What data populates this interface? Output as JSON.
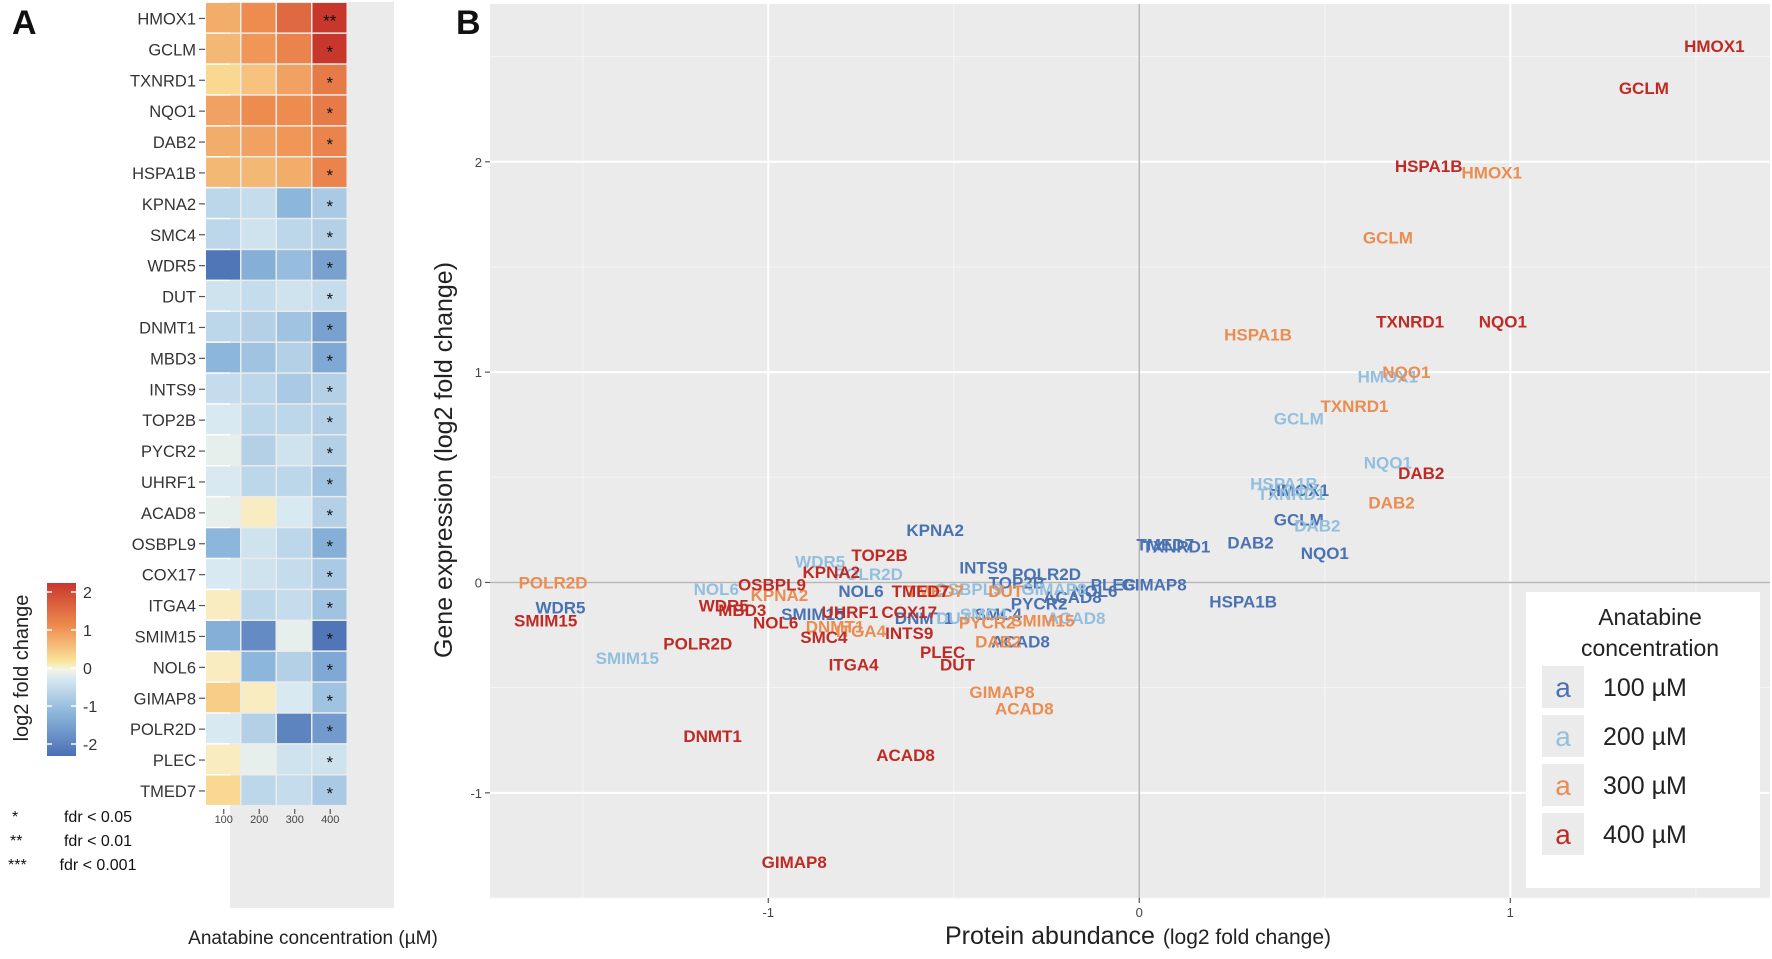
{
  "panel_a_letter": "A",
  "panel_b_letter": "B",
  "chart_data": [
    {
      "type": "heatmap",
      "panel": "A",
      "xlabel": "Anatabine concentration (µM)",
      "x_ticks": [
        "100",
        "200",
        "300",
        "400"
      ],
      "genes": [
        "HMOX1",
        "GCLM",
        "TXNRD1",
        "NQO1",
        "DAB2",
        "HSPA1B",
        "KPNA2",
        "SMC4",
        "WDR5",
        "DUT",
        "DNMT1",
        "MBD3",
        "INTS9",
        "TOP2B",
        "PYCR2",
        "UHRF1",
        "ACAD8",
        "OSBPL9",
        "COX17",
        "ITGA4",
        "SMIM15",
        "NOL6",
        "GIMAP8",
        "POLR2D",
        "PLEC",
        "TMED7"
      ],
      "values": [
        [
          0.7,
          1.0,
          1.4,
          2.3
        ],
        [
          0.6,
          0.9,
          1.1,
          2.0
        ],
        [
          0.3,
          0.5,
          0.8,
          1.2
        ],
        [
          0.8,
          1.0,
          1.0,
          1.2
        ],
        [
          0.7,
          0.8,
          0.9,
          1.1
        ],
        [
          0.6,
          0.6,
          0.7,
          1.1
        ],
        [
          -0.5,
          -0.4,
          -1.0,
          -0.7
        ],
        [
          -0.5,
          -0.3,
          -0.5,
          -0.6
        ],
        [
          -1.9,
          -1.1,
          -0.9,
          -1.3
        ],
        [
          -0.3,
          -0.4,
          -0.3,
          -0.4
        ],
        [
          -0.5,
          -0.6,
          -0.8,
          -1.3
        ],
        [
          -1.0,
          -0.8,
          -0.6,
          -1.2
        ],
        [
          -0.4,
          -0.5,
          -0.7,
          -0.6
        ],
        [
          -0.2,
          -0.5,
          -0.5,
          -0.6
        ],
        [
          -0.1,
          -0.6,
          -0.3,
          -0.6
        ],
        [
          -0.2,
          -0.5,
          -0.5,
          -0.8
        ],
        [
          -0.1,
          0.1,
          -0.2,
          -0.6
        ],
        [
          -1.0,
          -0.3,
          -0.5,
          -1.1
        ],
        [
          -0.2,
          -0.3,
          -0.4,
          -0.7
        ],
        [
          0.1,
          -0.5,
          -0.4,
          -0.8
        ],
        [
          -1.1,
          -1.6,
          -0.1,
          -1.9
        ],
        [
          0.1,
          -1.0,
          -0.6,
          -1.2
        ],
        [
          0.4,
          0.1,
          -0.2,
          -0.8
        ],
        [
          -0.2,
          -0.6,
          -1.7,
          -1.4
        ],
        [
          0.1,
          -0.1,
          -0.3,
          -0.3
        ],
        [
          0.3,
          -0.5,
          -0.4,
          -0.7
        ]
      ],
      "significance": [
        "**",
        "*",
        "*",
        "*",
        "*",
        "*",
        "*",
        "*",
        "*",
        "*",
        "*",
        "*",
        "*",
        "*",
        "*",
        "*",
        "*",
        "*",
        "*",
        "*",
        "*",
        "*",
        "*",
        "*",
        "*",
        "*"
      ],
      "colorbar_title": "log2 fold change",
      "colorbar_range": [
        -2,
        2
      ],
      "colorbar_ticks": [
        "2",
        "1",
        "0",
        "-1",
        "-2"
      ],
      "legend_sig": [
        {
          "symbol": "*",
          "label": "fdr < 0.05"
        },
        {
          "symbol": "**",
          "label": "fdr < 0.01"
        },
        {
          "symbol": "***",
          "label": "fdr < 0.001"
        }
      ]
    },
    {
      "type": "scatter",
      "panel": "B",
      "xlabel": "Protein abundance",
      "xlabel_suffix": "(log2 fold change)",
      "ylabel": "Gene expression (log2 fold change)",
      "xlim": [
        -1.75,
        1.7
      ],
      "ylim": [
        -1.5,
        2.75
      ],
      "x_ticks": [
        "-1",
        "0",
        "1"
      ],
      "y_ticks": [
        "-1",
        "0",
        "1",
        "2"
      ],
      "legend_title": "Anatabine concentration",
      "series": [
        {
          "name": "100 µM",
          "color": "#4a72b3",
          "points": [
            {
              "label": "KPNA2",
              "x": -0.55,
              "y": 0.25
            },
            {
              "label": "INTS9",
              "x": -0.42,
              "y": 0.07
            },
            {
              "label": "POLR2D",
              "x": -0.25,
              "y": 0.04
            },
            {
              "label": "TOP2B",
              "x": -0.33,
              "y": 0.0
            },
            {
              "label": "TMED7",
              "x": 0.07,
              "y": 0.18
            },
            {
              "label": "TXNRD1",
              "x": 0.1,
              "y": 0.17
            },
            {
              "label": "DAB2",
              "x": 0.3,
              "y": 0.19
            },
            {
              "label": "NQO1",
              "x": 0.5,
              "y": 0.14
            },
            {
              "label": "GCLM",
              "x": 0.43,
              "y": 0.3
            },
            {
              "label": "HMOX1",
              "x": 0.43,
              "y": 0.44
            },
            {
              "label": "HSPA1B",
              "x": 0.28,
              "y": -0.09
            },
            {
              "label": "PLEC",
              "x": -0.07,
              "y": -0.01
            },
            {
              "label": "GIMAP8",
              "x": 0.04,
              "y": -0.01
            },
            {
              "label": "NOL6",
              "x": -0.12,
              "y": -0.04
            },
            {
              "label": "ACAD8",
              "x": -0.18,
              "y": -0.07
            },
            {
              "label": "PYCR2",
              "x": -0.27,
              "y": -0.1
            },
            {
              "label": "SMC4",
              "x": -0.38,
              "y": -0.15
            },
            {
              "label": "ACAD8",
              "x": -0.32,
              "y": -0.28
            },
            {
              "label": "DNMT1",
              "x": -0.58,
              "y": -0.17
            },
            {
              "label": "SMIM15",
              "x": -0.88,
              "y": -0.15
            },
            {
              "label": "WDR5",
              "x": -1.56,
              "y": -0.12
            },
            {
              "label": "NOL6",
              "x": -0.75,
              "y": -0.04
            }
          ]
        },
        {
          "name": "200 µM",
          "color": "#93bfdf",
          "points": [
            {
              "label": "WDR5",
              "x": -0.86,
              "y": 0.1
            },
            {
              "label": "POLR2D",
              "x": -0.73,
              "y": 0.04
            },
            {
              "label": "NOL6",
              "x": -1.14,
              "y": -0.03
            },
            {
              "label": "SMIM15",
              "x": -1.38,
              "y": -0.36
            },
            {
              "label": "GIMAP8",
              "x": -0.23,
              "y": -0.03
            },
            {
              "label": "OSBPL9",
              "x": -0.46,
              "y": -0.03
            },
            {
              "label": "HMOX1",
              "x": 0.67,
              "y": 0.98
            },
            {
              "label": "GCLM",
              "x": 0.43,
              "y": 0.78
            },
            {
              "label": "NQO1",
              "x": 0.67,
              "y": 0.57
            },
            {
              "label": "HSPA1B",
              "x": 0.39,
              "y": 0.47
            },
            {
              "label": "TXNRD1",
              "x": 0.41,
              "y": 0.42
            },
            {
              "label": "DAB2",
              "x": 0.48,
              "y": 0.27
            },
            {
              "label": "SMC4",
              "x": -0.42,
              "y": -0.15
            },
            {
              "label": "DUT",
              "x": -0.5,
              "y": -0.17
            },
            {
              "label": "ACAD8",
              "x": -0.17,
              "y": -0.17
            }
          ]
        },
        {
          "name": "300 µM",
          "color": "#eb8c51",
          "points": [
            {
              "label": "POLR2D",
              "x": -1.58,
              "y": 0.0
            },
            {
              "label": "HMOX1",
              "x": 0.95,
              "y": 1.95
            },
            {
              "label": "GCLM",
              "x": 0.67,
              "y": 1.64
            },
            {
              "label": "HSPA1B",
              "x": 0.32,
              "y": 1.18
            },
            {
              "label": "NQO1",
              "x": 0.72,
              "y": 1.0
            },
            {
              "label": "TXNRD1",
              "x": 0.58,
              "y": 0.84
            },
            {
              "label": "DAB2",
              "x": 0.68,
              "y": 0.38
            },
            {
              "label": "GIMAP8",
              "x": -0.37,
              "y": -0.52
            },
            {
              "label": "ACAD8",
              "x": -0.31,
              "y": -0.6
            },
            {
              "label": "SMIM15",
              "x": -0.26,
              "y": -0.18
            },
            {
              "label": "DAB2",
              "x": -0.38,
              "y": -0.28
            },
            {
              "label": "PYCR2",
              "x": -0.41,
              "y": -0.19
            },
            {
              "label": "KPNA2",
              "x": -0.97,
              "y": -0.06
            },
            {
              "label": "DNMT1",
              "x": -0.82,
              "y": -0.21
            },
            {
              "label": "TMED7",
              "x": -0.55,
              "y": -0.04
            },
            {
              "label": "DUT",
              "x": -0.36,
              "y": -0.04
            },
            {
              "label": "ITGA4",
              "x": -0.75,
              "y": -0.23
            }
          ]
        },
        {
          "name": "400 µM",
          "color": "#bf2b24",
          "points": [
            {
              "label": "HMOX1",
              "x": 1.55,
              "y": 2.55
            },
            {
              "label": "GCLM",
              "x": 1.36,
              "y": 2.35
            },
            {
              "label": "HSPA1B",
              "x": 0.78,
              "y": 1.98
            },
            {
              "label": "TXNRD1",
              "x": 0.73,
              "y": 1.24
            },
            {
              "label": "NQO1",
              "x": 0.98,
              "y": 1.24
            },
            {
              "label": "DAB2",
              "x": 0.76,
              "y": 0.52
            },
            {
              "label": "KPNA2",
              "x": -0.83,
              "y": 0.05
            },
            {
              "label": "TOP2B",
              "x": -0.7,
              "y": 0.13
            },
            {
              "label": "OSBPL9",
              "x": -0.99,
              "y": -0.01
            },
            {
              "label": "TMED7",
              "x": -0.59,
              "y": -0.04
            },
            {
              "label": "WDR5",
              "x": -1.12,
              "y": -0.11
            },
            {
              "label": "MBD3",
              "x": -1.07,
              "y": -0.13
            },
            {
              "label": "NOL6",
              "x": -0.98,
              "y": -0.19
            },
            {
              "label": "UHRF1",
              "x": -0.78,
              "y": -0.14
            },
            {
              "label": "COX17",
              "x": -0.62,
              "y": -0.14
            },
            {
              "label": "SMC4",
              "x": -0.85,
              "y": -0.26
            },
            {
              "label": "INTS9",
              "x": -0.62,
              "y": -0.24
            },
            {
              "label": "PLEC",
              "x": -0.53,
              "y": -0.33
            },
            {
              "label": "DUT",
              "x": -0.49,
              "y": -0.39
            },
            {
              "label": "ITGA4",
              "x": -0.77,
              "y": -0.39
            },
            {
              "label": "POLR2D",
              "x": -1.19,
              "y": -0.29
            },
            {
              "label": "SMIM15",
              "x": -1.6,
              "y": -0.18
            },
            {
              "label": "DNMT1",
              "x": -1.15,
              "y": -0.73
            },
            {
              "label": "ACAD8",
              "x": -0.63,
              "y": -0.82
            },
            {
              "label": "GIMAP8",
              "x": -0.93,
              "y": -1.33
            }
          ]
        }
      ]
    }
  ]
}
